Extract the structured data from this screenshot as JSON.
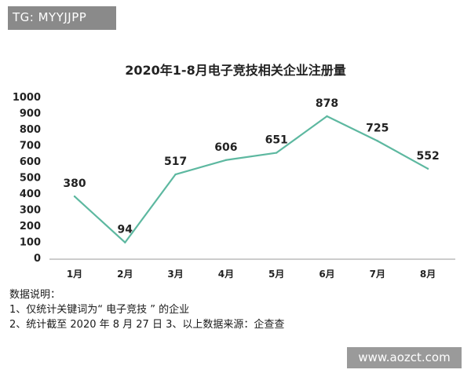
{
  "watermarks": {
    "top_left": "TG: MYYJJPP",
    "bottom_right": "www.aozct.com"
  },
  "notes": {
    "heading": "数据说明：",
    "line1": "1、仅统计关键词为“ 电子竞技 ” 的企业",
    "line2": "2、统计截至 2020 年 8 月 27 日  3、以上数据来源：企查查"
  },
  "colors": {
    "line": "#5db8a0",
    "axis": "#999999"
  },
  "chart_data": {
    "type": "line",
    "title": "2020年1-8月电子竞技相关企业注册量",
    "xlabel": "",
    "ylabel": "",
    "categories": [
      "1月",
      "2月",
      "3月",
      "4月",
      "5月",
      "6月",
      "7月",
      "8月"
    ],
    "series": [
      {
        "values": [
          380,
          94,
          517,
          606,
          651,
          878,
          725,
          552
        ]
      }
    ],
    "ylim": [
      0,
      1000
    ],
    "yticks": [
      0,
      100,
      200,
      300,
      400,
      500,
      600,
      700,
      800,
      900,
      1000
    ],
    "data_labels": true,
    "grid": false,
    "legend": "none"
  }
}
